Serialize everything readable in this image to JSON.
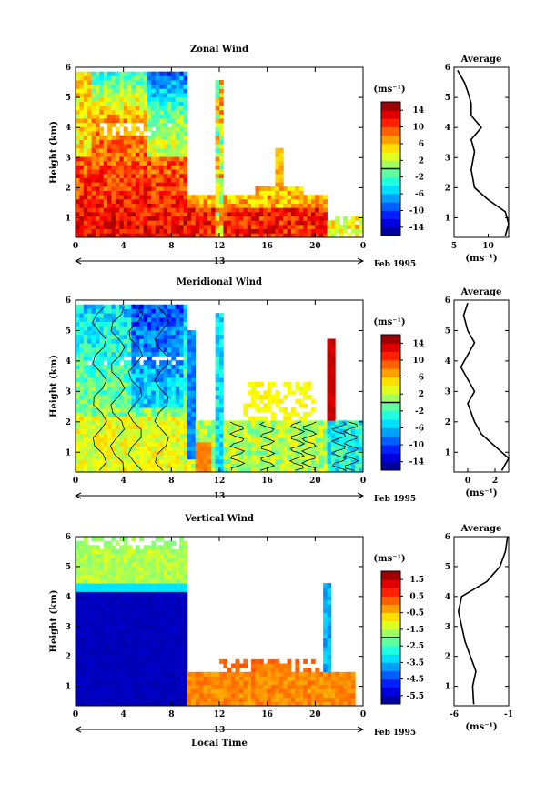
{
  "chart_data": [
    {
      "type": "heatmap",
      "title": "Zonal Wind",
      "ylabel": "Height (km)",
      "ylim": [
        0.35,
        6
      ],
      "yticks": [
        1,
        2,
        3,
        4,
        5,
        6
      ],
      "xlim": [
        0,
        24
      ],
      "xticks": [
        "0",
        "4",
        "8",
        "12",
        "16",
        "20",
        "0"
      ],
      "day_label": "13",
      "month_label": "Feb 1995",
      "colorbar": {
        "unit": "(ms⁻¹)",
        "range": [
          -16,
          16
        ],
        "ticks": [
          "14",
          "10",
          "6",
          "2",
          "-2",
          "-6",
          "-10",
          "-14"
        ]
      },
      "contours": false,
      "average": {
        "title": "Average",
        "xlabel": "(ms⁻¹)",
        "xticks": [
          "5",
          "10"
        ],
        "xlim": [
          5,
          13
        ],
        "profile": [
          [
            12.5,
            0.4
          ],
          [
            13,
            0.8
          ],
          [
            12.5,
            1.2
          ],
          [
            10,
            1.6
          ],
          [
            8,
            2.0
          ],
          [
            7.5,
            2.6
          ],
          [
            8,
            3.2
          ],
          [
            7.5,
            3.6
          ],
          [
            9,
            4.0
          ],
          [
            7.5,
            4.4
          ],
          [
            7.5,
            4.8
          ],
          [
            7,
            5.2
          ],
          [
            6.5,
            5.5
          ],
          [
            5.5,
            5.9
          ]
        ]
      }
    },
    {
      "type": "heatmap",
      "title": "Meridional Wind",
      "ylabel": "Height (km)",
      "ylim": [
        0.35,
        6
      ],
      "yticks": [
        1,
        2,
        3,
        4,
        5,
        6
      ],
      "xlim": [
        0,
        24
      ],
      "xticks": [
        "0",
        "4",
        "8",
        "12",
        "16",
        "20",
        "0"
      ],
      "day_label": "13",
      "month_label": "Feb 1995",
      "colorbar": {
        "unit": "(ms⁻¹)",
        "range": [
          -16,
          16
        ],
        "ticks": [
          "14",
          "10",
          "6",
          "2",
          "-2",
          "-6",
          "-10",
          "-14"
        ]
      },
      "contours": true,
      "average": {
        "title": "Average",
        "xlabel": "(ms⁻¹)",
        "xticks": [
          "0",
          "2"
        ],
        "xlim": [
          -1,
          3
        ],
        "profile": [
          [
            2.5,
            0.4
          ],
          [
            3,
            0.8
          ],
          [
            2,
            1.2
          ],
          [
            1,
            1.6
          ],
          [
            0.5,
            2.0
          ],
          [
            0,
            2.6
          ],
          [
            0.5,
            3.0
          ],
          [
            0,
            3.4
          ],
          [
            -0.5,
            3.8
          ],
          [
            0,
            4.2
          ],
          [
            0.5,
            4.6
          ],
          [
            0,
            5.0
          ],
          [
            -0.3,
            5.5
          ],
          [
            0,
            5.9
          ]
        ]
      }
    },
    {
      "type": "heatmap",
      "title": "Vertical Wind",
      "ylabel": "Height (km)",
      "xlabel": "Local Time",
      "ylim": [
        0.35,
        6
      ],
      "yticks": [
        1,
        2,
        3,
        4,
        5,
        6
      ],
      "xlim": [
        0,
        24
      ],
      "xticks": [
        "0",
        "4",
        "8",
        "12",
        "16",
        "20",
        "0"
      ],
      "day_label": "13",
      "month_label": "Feb 1995",
      "colorbar": {
        "unit": "(ms⁻¹)",
        "range": [
          -6,
          2
        ],
        "ticks": [
          "1.5",
          "0.5",
          "-0.5",
          "-1.5",
          "-2.5",
          "-3.5",
          "-4.5",
          "-5.5"
        ]
      },
      "contours": false,
      "average": {
        "title": "Average",
        "xlabel": "(ms⁻¹)",
        "xticks": [
          "-6",
          "-1"
        ],
        "xlim": [
          -6,
          -1
        ],
        "profile": [
          [
            -4.2,
            0.4
          ],
          [
            -4.3,
            1.0
          ],
          [
            -4.0,
            1.5
          ],
          [
            -4.5,
            2.0
          ],
          [
            -5.0,
            2.5
          ],
          [
            -5.3,
            3.0
          ],
          [
            -5.6,
            3.5
          ],
          [
            -5.3,
            4.0
          ],
          [
            -3.0,
            4.5
          ],
          [
            -1.8,
            5.0
          ],
          [
            -1.3,
            5.5
          ],
          [
            -1.1,
            6.0
          ]
        ]
      }
    }
  ]
}
